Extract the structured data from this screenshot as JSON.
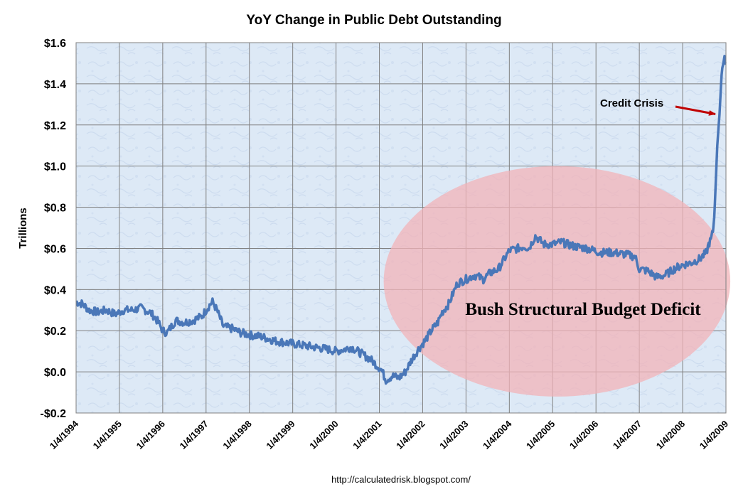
{
  "chart_data": {
    "type": "line",
    "title": "YoY Change in Public Debt Outstanding",
    "ylabel": "Trillions",
    "xlabel": "",
    "ylim": [
      -0.2,
      1.6
    ],
    "ytick_values": [
      -0.2,
      0.0,
      0.2,
      0.4,
      0.6,
      0.8,
      1.0,
      1.2,
      1.4,
      1.6
    ],
    "ytick_labels": [
      "-$0.2",
      "$0.0",
      "$0.2",
      "$0.4",
      "$0.6",
      "$0.8",
      "$1.0",
      "$1.2",
      "$1.4",
      "$1.6"
    ],
    "xlim": [
      1994.0,
      2009.0
    ],
    "xtick_values": [
      1994,
      1995,
      1996,
      1997,
      1998,
      1999,
      2000,
      2001,
      2002,
      2003,
      2004,
      2005,
      2006,
      2007,
      2008,
      2009
    ],
    "xtick_labels": [
      "1/4/1994",
      "1/4/1995",
      "1/4/1996",
      "1/4/1997",
      "1/4/1998",
      "1/4/1999",
      "1/4/2000",
      "1/4/2001",
      "1/4/2002",
      "1/4/2003",
      "1/4/2004",
      "1/4/2005",
      "1/4/2006",
      "1/4/2007",
      "1/4/2008",
      "1/4/2009"
    ],
    "grid": true,
    "series": [
      {
        "name": "YoY Change in Public Debt Outstanding",
        "color": "#4a77b8",
        "x": [
          1994.0,
          1994.15,
          1994.3,
          1994.5,
          1994.7,
          1994.9,
          1995.1,
          1995.3,
          1995.5,
          1995.7,
          1995.8,
          1995.9,
          1996.0,
          1996.1,
          1996.2,
          1996.3,
          1996.5,
          1996.7,
          1996.9,
          1997.0,
          1997.1,
          1997.15,
          1997.25,
          1997.4,
          1997.6,
          1997.8,
          1998.0,
          1998.3,
          1998.6,
          1998.9,
          1999.2,
          1999.5,
          1999.8,
          2000.0,
          2000.2,
          2000.35,
          2000.5,
          2000.65,
          2000.8,
          2000.95,
          2001.05,
          2001.15,
          2001.3,
          2001.45,
          2001.6,
          2001.75,
          2001.9,
          2002.05,
          2002.2,
          2002.35,
          2002.45,
          2002.6,
          2002.8,
          2003.0,
          2003.2,
          2003.4,
          2003.55,
          2003.75,
          2004.0,
          2004.2,
          2004.35,
          2004.45,
          2004.6,
          2004.8,
          2005.0,
          2005.2,
          2005.5,
          2005.8,
          2006.1,
          2006.4,
          2006.7,
          2006.9,
          2007.0,
          2007.2,
          2007.4,
          2007.6,
          2007.8,
          2008.0,
          2008.2,
          2008.4,
          2008.5,
          2008.55,
          2008.6,
          2008.65,
          2008.7,
          2008.73,
          2008.76,
          2008.8,
          2008.85,
          2008.9,
          2008.95,
          2009.0
        ],
        "values": [
          0.34,
          0.33,
          0.3,
          0.29,
          0.3,
          0.28,
          0.3,
          0.3,
          0.31,
          0.29,
          0.27,
          0.24,
          0.2,
          0.19,
          0.22,
          0.25,
          0.24,
          0.25,
          0.27,
          0.3,
          0.33,
          0.34,
          0.3,
          0.22,
          0.21,
          0.19,
          0.18,
          0.17,
          0.15,
          0.14,
          0.13,
          0.12,
          0.11,
          0.1,
          0.11,
          0.12,
          0.1,
          0.08,
          0.06,
          0.03,
          0.01,
          -0.04,
          -0.02,
          -0.03,
          0.0,
          0.06,
          0.11,
          0.15,
          0.2,
          0.24,
          0.29,
          0.33,
          0.43,
          0.45,
          0.47,
          0.45,
          0.48,
          0.5,
          0.59,
          0.6,
          0.61,
          0.6,
          0.66,
          0.62,
          0.62,
          0.63,
          0.61,
          0.6,
          0.58,
          0.58,
          0.57,
          0.56,
          0.5,
          0.49,
          0.46,
          0.47,
          0.5,
          0.52,
          0.53,
          0.55,
          0.57,
          0.58,
          0.62,
          0.64,
          0.68,
          0.75,
          0.9,
          1.1,
          1.25,
          1.45,
          1.53,
          1.5
        ]
      }
    ],
    "annotations": [
      {
        "text": "Credit Crisis",
        "type": "arrow",
        "arrow_color": "#c00000",
        "target": [
          2008.82,
          1.27
        ]
      },
      {
        "text": "Bush Structural Budget Deficit",
        "type": "ellipse-label",
        "ellipse_color": "#f2b3b8",
        "center": [
          2005.1,
          0.44
        ],
        "rx_years": 4.0,
        "ry_values": 0.56
      }
    ],
    "source": "http://calculatedrisk.blogspot.com/",
    "colors": {
      "plot_bg": "#dce9f6",
      "grid": "#808080",
      "line": "#4a77b8"
    }
  }
}
